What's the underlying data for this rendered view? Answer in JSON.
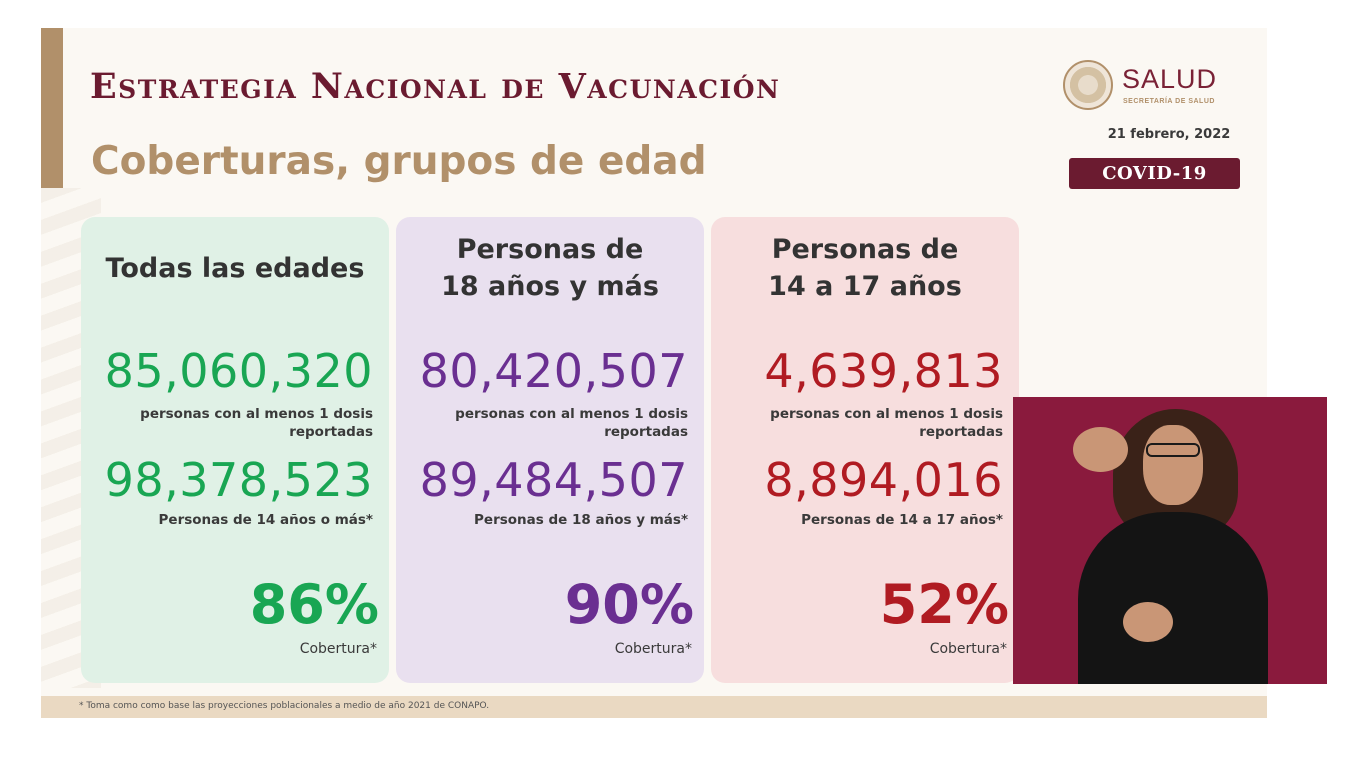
{
  "header": {
    "title": "Estrategia Nacional de Vacunación",
    "subtitle": "Coberturas, grupos de edad"
  },
  "logo": {
    "name": "SALUD",
    "subname": "SECRETARÍA DE SALUD"
  },
  "date": "21 febrero, 2022",
  "badge": "COVID-19",
  "colors": {
    "title": "#6b1b30",
    "gold": "#b1906a",
    "green": "#19a653",
    "purple": "#6a2f91",
    "red": "#b01b22"
  },
  "cards": [
    {
      "heading": "Todas las edades",
      "vaccinated": "85,060,320",
      "vaccinated_label_1": "personas con al menos 1 dosis",
      "vaccinated_label_2": "reportadas",
      "population": "98,378,523",
      "population_label": "Personas de 14 años o más*",
      "coverage": "86%",
      "coverage_label": "Cobertura*"
    },
    {
      "heading_1": "Personas de",
      "heading_2": "18 años y más",
      "vaccinated": "80,420,507",
      "vaccinated_label_1": "personas con al menos 1 dosis",
      "vaccinated_label_2": "reportadas",
      "population": "89,484,507",
      "population_label": "Personas de 18 años y más*",
      "coverage": "90%",
      "coverage_label": "Cobertura*"
    },
    {
      "heading_1": "Personas de",
      "heading_2": "14 a 17 años",
      "vaccinated": "4,639,813",
      "vaccinated_label_1": "personas con al menos 1 dosis",
      "vaccinated_label_2": "reportadas",
      "population": "8,894,016",
      "population_label": "Personas de 14 a 17 años*",
      "coverage": "52%",
      "coverage_label": "Cobertura*"
    }
  ],
  "footnote": "* Toma como como base las proyecciones poblacionales a medio de año 2021 de CONAPO."
}
